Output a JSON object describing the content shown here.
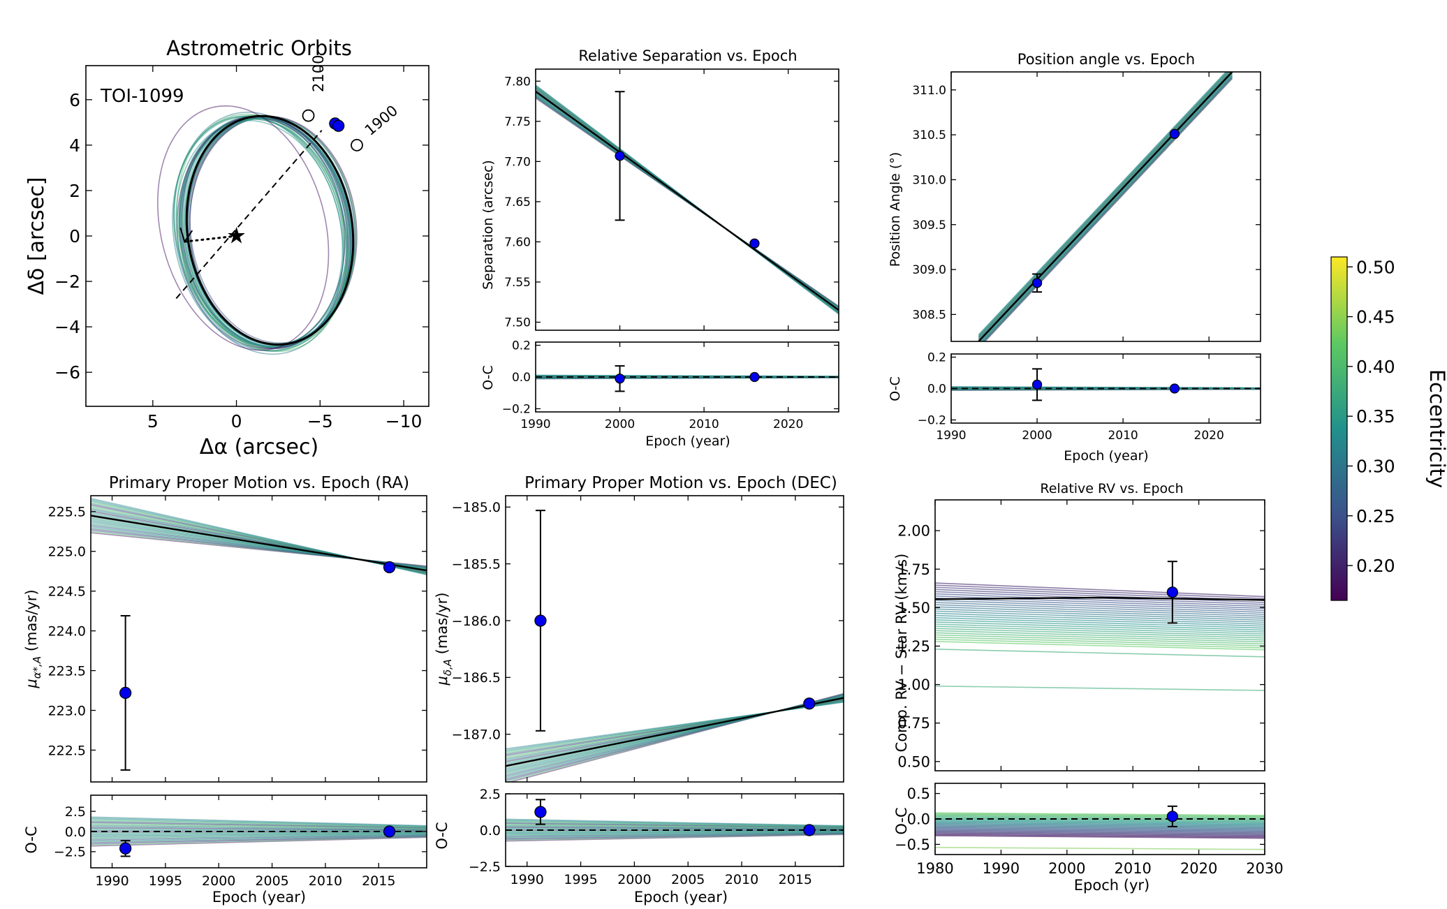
{
  "figure": {
    "target": "TOI-1099",
    "colorbar_label": "Eccentricity"
  },
  "colorbar": {
    "label": "Eccentricity",
    "range": [
      0.165,
      0.51
    ],
    "ticks": [
      "0.20",
      "0.25",
      "0.30",
      "0.35",
      "0.40",
      "0.45",
      "0.50"
    ],
    "tick_values": [
      0.2,
      0.25,
      0.3,
      0.35,
      0.4,
      0.45,
      0.5
    ],
    "colormap": "viridis"
  },
  "chart_data": [
    {
      "id": "orbit",
      "type": "line",
      "title": "Astrometric Orbits",
      "xlabel": "Δα (arcsec)",
      "ylabel": "Δδ [arcsec]",
      "xlim": [
        9.0,
        -11.5
      ],
      "ylim": [
        -7.5,
        7.5
      ],
      "xticks": [
        5,
        0,
        -5,
        -10
      ],
      "xticklabels": [
        "5",
        "0",
        "−5",
        "−10"
      ],
      "yticks": [
        6,
        4,
        2,
        0,
        -2,
        -4,
        -6
      ],
      "yticklabels": [
        "6",
        "4",
        "2",
        "0",
        "−2",
        "−4",
        "−6"
      ],
      "annotations": [
        {
          "text": "TOI-1099"
        },
        {
          "text": "2100"
        },
        {
          "text": "1900"
        }
      ],
      "markers": {
        "star": [
          0,
          0
        ],
        "epoch_2100": [
          -4.3,
          5.3
        ],
        "epoch_1900": [
          -7.2,
          4.0
        ],
        "data": [
          [
            -5.9,
            4.95
          ],
          [
            -6.1,
            4.85
          ]
        ]
      },
      "best_fit_ellipse": {
        "center": [
          -2.0,
          0.25
        ],
        "semi_major": 5.25,
        "semi_minor": 4.75,
        "tilt_deg": 48
      }
    },
    {
      "id": "sep",
      "type": "line",
      "title": "Relative Separation vs. Epoch",
      "xlabel": "Epoch (year)",
      "ylabel": "Separation (arcsec)",
      "xlim": [
        1990,
        2026
      ],
      "ylim": [
        7.49,
        7.815
      ],
      "xticks": [
        1990,
        2000,
        2010,
        2020
      ],
      "xticklabels": [
        "1990",
        "2000",
        "2010",
        "2020"
      ],
      "yticks": [
        7.5,
        7.55,
        7.6,
        7.65,
        7.7,
        7.75,
        7.8
      ],
      "yticklabels": [
        "7.50",
        "7.55",
        "7.60",
        "7.65",
        "7.70",
        "7.75",
        "7.80"
      ],
      "best_fit": [
        [
          1990,
          7.787
        ],
        [
          2026,
          7.515
        ]
      ],
      "points": [
        {
          "x": 2000,
          "y": 7.707,
          "err": 0.08
        },
        {
          "x": 2016,
          "y": 7.598,
          "err": 0.0
        }
      ],
      "residuals": {
        "ylabel": "O-C",
        "ylim": [
          -0.22,
          0.22
        ],
        "yticks": [
          0.2,
          0.0,
          -0.2
        ],
        "yticklabels": [
          "0.2",
          "0.0",
          "−0.2"
        ],
        "points": [
          {
            "x": 2000,
            "y": -0.01,
            "err": 0.08
          },
          {
            "x": 2016,
            "y": 0.0,
            "err": 0.0
          }
        ]
      }
    },
    {
      "id": "pa",
      "type": "line",
      "title": "Position angle vs. Epoch",
      "xlabel": "Epoch (year)",
      "ylabel": "Position Angle (°)",
      "xlim": [
        1990,
        2026
      ],
      "ylim": [
        308.2,
        311.2
      ],
      "xticks": [
        1990,
        2000,
        2010,
        2020
      ],
      "xticklabels": [
        "1990",
        "2000",
        "2010",
        "2020"
      ],
      "yticks": [
        308.5,
        309.0,
        309.5,
        310.0,
        310.5,
        311.0
      ],
      "yticklabels": [
        "308.5",
        "309.0",
        "309.5",
        "310.0",
        "310.5",
        "311.0"
      ],
      "best_fit": [
        [
          1993.2,
          308.2
        ],
        [
          2022.7,
          311.2
        ]
      ],
      "points": [
        {
          "x": 2000,
          "y": 308.85,
          "err": 0.1
        },
        {
          "x": 2016,
          "y": 310.51,
          "err": 0.0
        }
      ],
      "residuals": {
        "ylabel": "O-C",
        "ylim": [
          -0.22,
          0.22
        ],
        "yticks": [
          0.2,
          0.0,
          -0.2
        ],
        "yticklabels": [
          "0.2",
          "0.0",
          "−0.2"
        ],
        "points": [
          {
            "x": 2000,
            "y": 0.025,
            "err": 0.1
          },
          {
            "x": 2016,
            "y": 0.0,
            "err": 0.0
          }
        ]
      }
    },
    {
      "id": "pmra",
      "type": "line",
      "title": "Primary Proper Motion vs. Epoch (RA)",
      "xlabel": "Epoch (year)",
      "ylabel": "μα*,A (mas/yr)",
      "xlim": [
        1988,
        2019.5
      ],
      "ylim": [
        222.1,
        225.7
      ],
      "xticks": [
        1990,
        1995,
        2000,
        2005,
        2010,
        2015
      ],
      "xticklabels": [
        "1990",
        "1995",
        "2000",
        "2005",
        "2010",
        "2015"
      ],
      "yticks": [
        222.5,
        223.0,
        223.5,
        224.0,
        224.5,
        225.0,
        225.5
      ],
      "yticklabels": [
        "222.5",
        "223.0",
        "223.5",
        "224.0",
        "224.5",
        "225.0",
        "225.5"
      ],
      "best_fit": [
        [
          1988,
          225.45
        ],
        [
          2019.5,
          224.76
        ]
      ],
      "points": [
        {
          "x": 1991.25,
          "y": 223.22,
          "err": 0.97
        },
        {
          "x": 2016.0,
          "y": 224.8,
          "err": 0.0
        }
      ],
      "residuals": {
        "ylabel": "O-C",
        "ylim": [
          -4.5,
          4.5
        ],
        "yticks": [
          2.5,
          0.0,
          -2.5
        ],
        "yticklabels": [
          "2.5",
          "0.0",
          "−2.5"
        ],
        "points": [
          {
            "x": 1991.25,
            "y": -2.1,
            "err": 0.97
          },
          {
            "x": 2016.0,
            "y": 0.0,
            "err": 0.0
          }
        ]
      }
    },
    {
      "id": "pmdec",
      "type": "line",
      "title": "Primary Proper Motion vs. Epoch (DEC)",
      "xlabel": "Epoch (year)",
      "ylabel": "μδ,A (mas/yr)",
      "xlim": [
        1988,
        2019.5
      ],
      "ylim": [
        -187.42,
        -184.9
      ],
      "xticks": [
        1990,
        1995,
        2000,
        2005,
        2010,
        2015
      ],
      "xticklabels": [
        "1990",
        "1995",
        "2000",
        "2005",
        "2010",
        "2015"
      ],
      "yticks": [
        -185.0,
        -185.5,
        -186.0,
        -186.5,
        -187.0
      ],
      "yticklabels": [
        "−185.0",
        "−185.5",
        "−186.0",
        "−186.5",
        "−187.0"
      ],
      "best_fit": [
        [
          1988,
          -187.28
        ],
        [
          2019.5,
          -186.68
        ]
      ],
      "points": [
        {
          "x": 1991.25,
          "y": -186.0,
          "err": 0.97
        },
        {
          "x": 2016.3,
          "y": -186.73,
          "err": 0.0
        }
      ],
      "residuals": {
        "ylabel": "O-C",
        "ylim": [
          -2.5,
          2.5
        ],
        "yticks": [
          2.5,
          0.0,
          -2.5
        ],
        "yticklabels": [
          "2.5",
          "0.0",
          "−2.5"
        ],
        "points": [
          {
            "x": 1991.25,
            "y": 1.25,
            "err": 0.85
          },
          {
            "x": 2016.3,
            "y": 0.0,
            "err": 0.0
          }
        ]
      }
    },
    {
      "id": "rv",
      "type": "line",
      "title": "Relative RV vs. Epoch",
      "xlabel": "Epoch (yr)",
      "ylabel": "Comp. RV − Star RV (km/s)",
      "xlim": [
        1980,
        2030
      ],
      "ylim": [
        0.44,
        2.2
      ],
      "xticks": [
        1980,
        1990,
        2000,
        2010,
        2020,
        2030
      ],
      "xticklabels": [
        "1980",
        "1990",
        "2000",
        "2010",
        "2020",
        "2030"
      ],
      "yticks": [
        0.5,
        0.75,
        1.0,
        1.25,
        1.5,
        1.75,
        2.0
      ],
      "yticklabels": [
        "0.50",
        "0.75",
        "1.00",
        "1.25",
        "1.50",
        "1.75",
        "2.00"
      ],
      "best_fit": [
        [
          1980,
          1.555
        ],
        [
          2005,
          1.565
        ],
        [
          2030,
          1.55
        ]
      ],
      "points": [
        {
          "x": 2016,
          "y": 1.6,
          "err": 0.2
        }
      ],
      "residuals": {
        "ylabel": "O-C",
        "ylim": [
          -0.7,
          0.7
        ],
        "yticks": [
          0.5,
          0.0,
          -0.5
        ],
        "yticklabels": [
          "0.5",
          "0.0",
          "−0.5"
        ],
        "points": [
          {
            "x": 2016,
            "y": 0.05,
            "err": 0.2
          }
        ]
      }
    }
  ]
}
